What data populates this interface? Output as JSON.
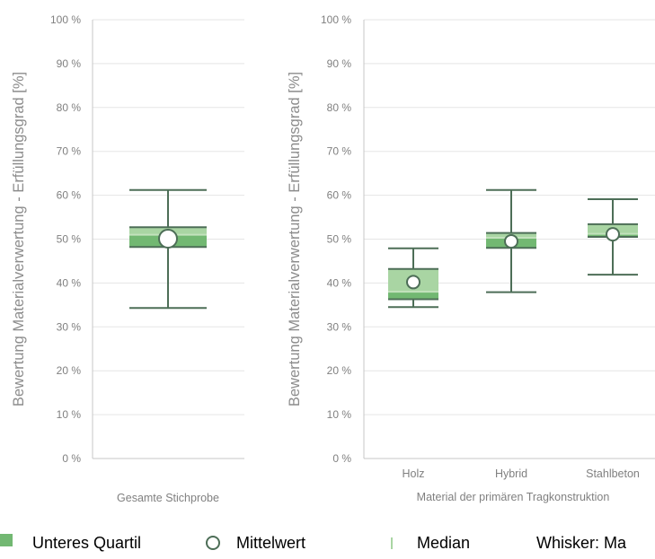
{
  "chart_data": [
    {
      "type": "boxplot",
      "ylabel": "Bewertung Materialverwertung - Erfüllungsgrad [%]",
      "xlabel": "",
      "ylim": [
        0,
        100
      ],
      "yticks": [
        "0 %",
        "10 %",
        "20 %",
        "30 %",
        "40 %",
        "50 %",
        "60 %",
        "70 %",
        "80 %",
        "90 %",
        "100 %"
      ],
      "grid": true,
      "categories": [
        "Gesamte Stichprobe"
      ],
      "boxes": [
        {
          "category": "Gesamte Stichprobe",
          "whisker_low": 34.3,
          "q1": 48.2,
          "median": 51.0,
          "q3": 52.7,
          "whisker_high": 61.2,
          "mean": 50.1
        }
      ]
    },
    {
      "type": "boxplot",
      "ylabel": "Bewertung Materialverwertung - Erfüllungsgrad [%]",
      "xlabel": "Material der primären Tragkonstruktion",
      "ylim": [
        0,
        100
      ],
      "yticks": [
        "0 %",
        "10 %",
        "20 %",
        "30 %",
        "40 %",
        "50 %",
        "60 %",
        "70 %",
        "80 %",
        "90 %",
        "100 %"
      ],
      "grid": true,
      "categories": [
        "Holz",
        "Hybrid",
        "Stahlbeton"
      ],
      "boxes": [
        {
          "category": "Holz",
          "whisker_low": 34.5,
          "q1": 36.3,
          "median": 38.0,
          "q3": 43.2,
          "whisker_high": 47.9,
          "mean": 40.2
        },
        {
          "category": "Hybrid",
          "whisker_low": 37.9,
          "q1": 48.0,
          "median": 50.3,
          "q3": 51.4,
          "whisker_high": 61.2,
          "mean": 49.5
        },
        {
          "category": "Stahlbeton",
          "whisker_low": 41.9,
          "q1": 50.5,
          "median": 51.2,
          "q3": 53.4,
          "whisker_high": 59.1,
          "mean": 51.1
        }
      ]
    }
  ],
  "legend": {
    "items": [
      "Unteres Quartil",
      "Mittelwert",
      "Median",
      "Whisker: Ma"
    ]
  },
  "colors": {
    "box_lower": "#72b872",
    "box_upper": "#a9d5a3",
    "median_line": "#c3e2bd",
    "line": "#4d6e57",
    "grid": "#e5e5e5",
    "axis": "#c7c7c7",
    "tick_text": "#808080"
  }
}
